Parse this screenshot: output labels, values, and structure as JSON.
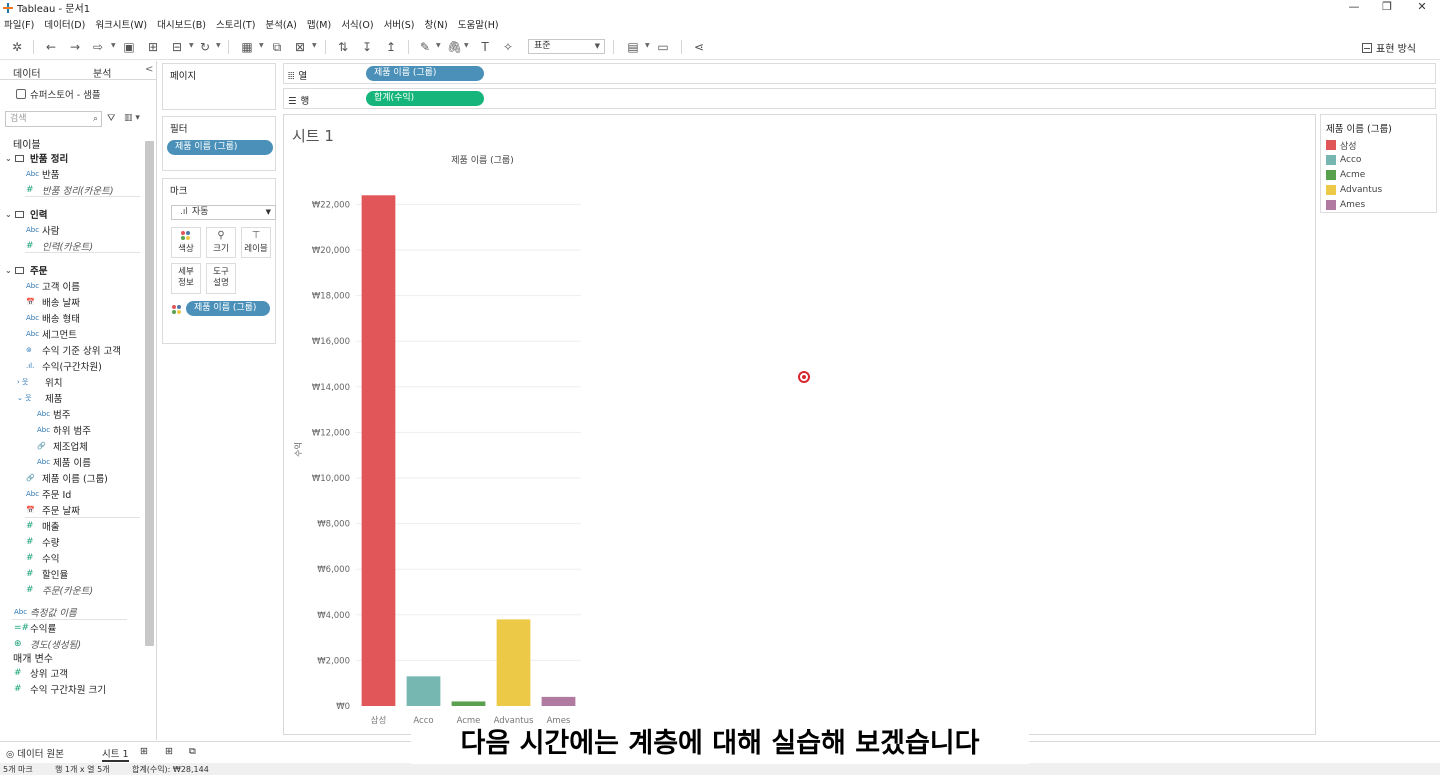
{
  "window": {
    "title": "Tableau - 문서1",
    "minimize": "—",
    "restore": "❐",
    "close": "✕"
  },
  "menu": [
    "파일(F)",
    "데이터(D)",
    "워크시트(W)",
    "대시보드(B)",
    "스토리(T)",
    "분석(A)",
    "맵(M)",
    "서식(O)",
    "서버(S)",
    "창(N)",
    "도움말(H)"
  ],
  "toolbar": {
    "fit": "표준",
    "show_me": "표현 방식"
  },
  "datapane": {
    "tab_data": "데이터",
    "tab_analysis": "분석",
    "collapse": "<",
    "datasource": "슈퍼스토어 - 샘플",
    "search_placeholder": "검색",
    "tables_heading": "테이블",
    "groups": [
      {
        "name": "반품 정리",
        "fields": [
          {
            "type": "Abc",
            "name": "반품"
          },
          {
            "type": "#",
            "name": "반품 정리(카운트)",
            "italic": true
          }
        ]
      },
      {
        "name": "인력",
        "fields": [
          {
            "type": "Abc",
            "name": "사람"
          },
          {
            "type": "#",
            "name": "인력(카운트)",
            "italic": true
          }
        ]
      },
      {
        "name": "주문",
        "fields": [
          {
            "type": "Abc",
            "name": "고객 이름"
          },
          {
            "type": "📅",
            "name": "배송 날짜"
          },
          {
            "type": "Abc",
            "name": "배송 형태"
          },
          {
            "type": "Abc",
            "name": "세그먼트"
          },
          {
            "type": "⊚",
            "name": "수익 기준 상위 고객"
          },
          {
            "type": ".ıl.",
            "name": "수익(구간차원)"
          },
          {
            "type": "웃",
            "name": "위치"
          },
          {
            "type": "웃",
            "name": "제품"
          },
          {
            "type": "Abc",
            "name": "범주"
          },
          {
            "type": "Abc",
            "name": "하위 범주"
          },
          {
            "type": "🔗",
            "name": "제조업체"
          },
          {
            "type": "Abc",
            "name": "제품 이름"
          },
          {
            "type": "🔗",
            "name": "제품 이름 (그룹)"
          },
          {
            "type": "Abc",
            "name": "주문 Id"
          },
          {
            "type": "📅",
            "name": "주문 날짜"
          },
          {
            "type": "#",
            "name": "매출"
          },
          {
            "type": "#",
            "name": "수량"
          },
          {
            "type": "#",
            "name": "수익"
          },
          {
            "type": "#",
            "name": "할인율"
          },
          {
            "type": "#",
            "name": "주문(카운트)",
            "italic": true
          }
        ]
      }
    ],
    "extra_fields": [
      {
        "type": "Abc",
        "name": "측정값 이름",
        "italic": true
      },
      {
        "type": "=#",
        "name": "수익률"
      },
      {
        "type": "⊕",
        "name": "경도(생성됨)",
        "italic": true
      }
    ],
    "param_heading": "매개 변수",
    "params": [
      {
        "type": "#",
        "name": "상위 고객"
      },
      {
        "type": "#",
        "name": "수익 구간차원 크기"
      }
    ]
  },
  "shelves": {
    "pages": "페이지",
    "filters": "필터",
    "filter_pill": "제품 이름 (그룹)",
    "marks": "마크",
    "mark_type": "자동",
    "mark_type_icon": ".ıl",
    "color": "색상",
    "size": "크기",
    "label": "레이블",
    "detail": "세부\n정보",
    "tooltip": "도구\n설명",
    "color_pill": "제품 이름 (그룹)",
    "columns_label": "열",
    "columns_pill": "제품 이름 (그룹)",
    "rows_label": "행",
    "rows_pill": "합계(수익)"
  },
  "sheet": {
    "title": "시트 1"
  },
  "chart_data": {
    "type": "bar",
    "title": "제품 이름 (그룹)",
    "ylabel": "수익",
    "categories": [
      "삼성",
      "Acco",
      "Acme",
      "Advantus",
      "Ames"
    ],
    "values": [
      22400,
      1300,
      200,
      3800,
      400
    ],
    "colors": [
      "#e15759",
      "#76b7b2",
      "#59a14f",
      "#edc948",
      "#b07aa1"
    ],
    "ylim": [
      0,
      22500
    ],
    "yticks": [
      0,
      2000,
      4000,
      6000,
      8000,
      10000,
      12000,
      14000,
      16000,
      18000,
      20000,
      22000
    ],
    "ytick_labels": [
      "₩0",
      "₩2,000",
      "₩4,000",
      "₩6,000",
      "₩8,000",
      "₩10,000",
      "₩12,000",
      "₩14,000",
      "₩16,000",
      "₩18,000",
      "₩20,000",
      "₩22,000"
    ],
    "grid": true
  },
  "legend": {
    "title": "제품 이름 (그룹)",
    "items": [
      {
        "name": "삼성",
        "color": "#e15759"
      },
      {
        "name": "Acco",
        "color": "#76b7b2"
      },
      {
        "name": "Acme",
        "color": "#59a14f"
      },
      {
        "name": "Advantus",
        "color": "#edc948"
      },
      {
        "name": "Ames",
        "color": "#b07aa1"
      }
    ]
  },
  "tabs": {
    "datasource": "데이터 원본",
    "sheet1": "시트 1"
  },
  "status": {
    "marks": "5개 마크",
    "rows_cols": "행 1개 x 열 5개",
    "sum": "합계(수익): ₩28,144"
  },
  "caption": "다음 시간에는 계층에 대해 실습해 보겠습니다"
}
